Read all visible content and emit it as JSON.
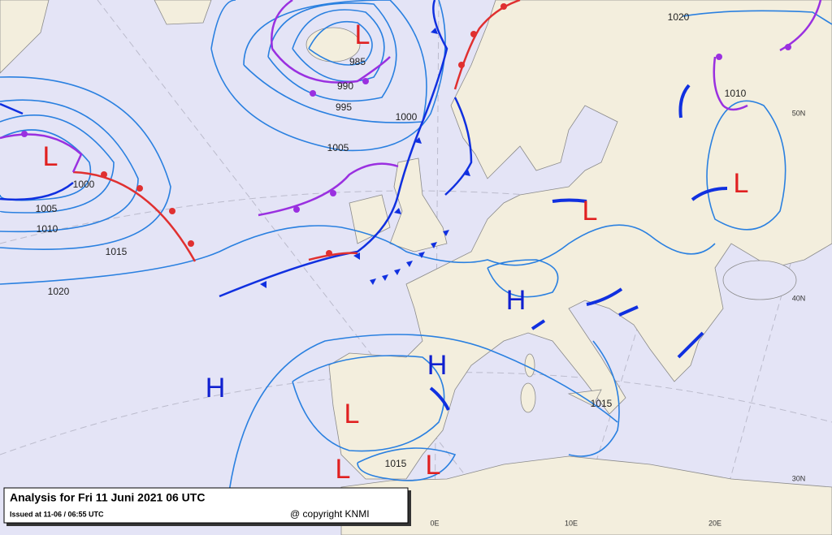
{
  "header": {
    "title": "Analysis for Fri 11 Juni 2021 06 UTC",
    "issued": "Issued at 11-06 / 06:55 UTC",
    "copyright": "@ copyright KNMI"
  },
  "pressure_centers": [
    "L",
    "L",
    "L",
    "L",
    "L",
    "L",
    "L",
    "H",
    "H",
    "H"
  ],
  "isobar_labels": [
    "985",
    "990",
    "995",
    "1000",
    "1005",
    "1000",
    "1005",
    "1010",
    "1015",
    "1020",
    "1020",
    "1010",
    "1015",
    "1015"
  ],
  "grid_labels": [
    "50N",
    "40N",
    "30N",
    "0E",
    "10E",
    "20E"
  ]
}
